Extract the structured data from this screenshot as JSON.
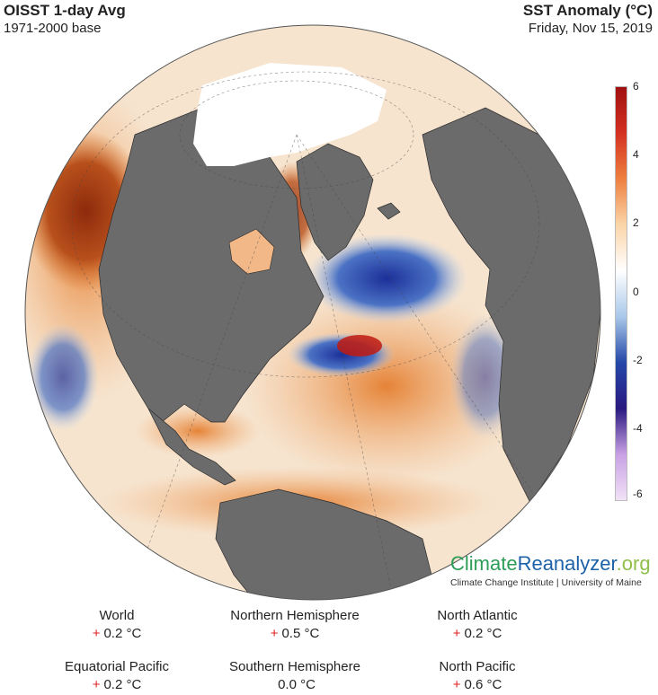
{
  "header": {
    "title": "OISST 1-day Avg",
    "baseline": "1971-2000 base",
    "variable": "SST Anomaly (°C)",
    "date": "Friday, Nov 15, 2019"
  },
  "colorbar": {
    "ticks": [
      "6",
      "4",
      "2",
      "0",
      "-2",
      "-4",
      "-6"
    ],
    "stops": [
      "#a01010",
      "#d43020",
      "#ee8040",
      "#fbd5a8",
      "#ffffff",
      "#a9c8ea",
      "#2448a8",
      "#2a1a80",
      "#c8a0e4",
      "#f1e2f7"
    ]
  },
  "brand": {
    "part1": "Climate",
    "part2": "Reanalyzer",
    "part3": ".org",
    "subtitle": "Climate Change Institute | University of Maine"
  },
  "stats": [
    {
      "label": "World",
      "sign": "+",
      "value": "0.2 °C"
    },
    {
      "label": "Northern Hemisphere",
      "sign": "+",
      "value": "0.5 °C"
    },
    {
      "label": "North Atlantic",
      "sign": "+",
      "value": "0.2 °C"
    },
    {
      "label": "Equatorial Pacific",
      "sign": "+",
      "value": "0.2 °C"
    },
    {
      "label": "Southern Hemisphere",
      "sign": "",
      "value": "0.0 °C"
    },
    {
      "label": "North Pacific",
      "sign": "+",
      "value": "0.6 °C"
    }
  ],
  "map_colors": {
    "ocean_warm": "#e9914a",
    "ocean_hot": "#a33a12",
    "ocean_neutral": "#f7f2ea",
    "ocean_cool": "#5b86cf",
    "ocean_cold": "#2338a0",
    "land": "#6e6e6e",
    "sea_ice": "#ffffff"
  }
}
